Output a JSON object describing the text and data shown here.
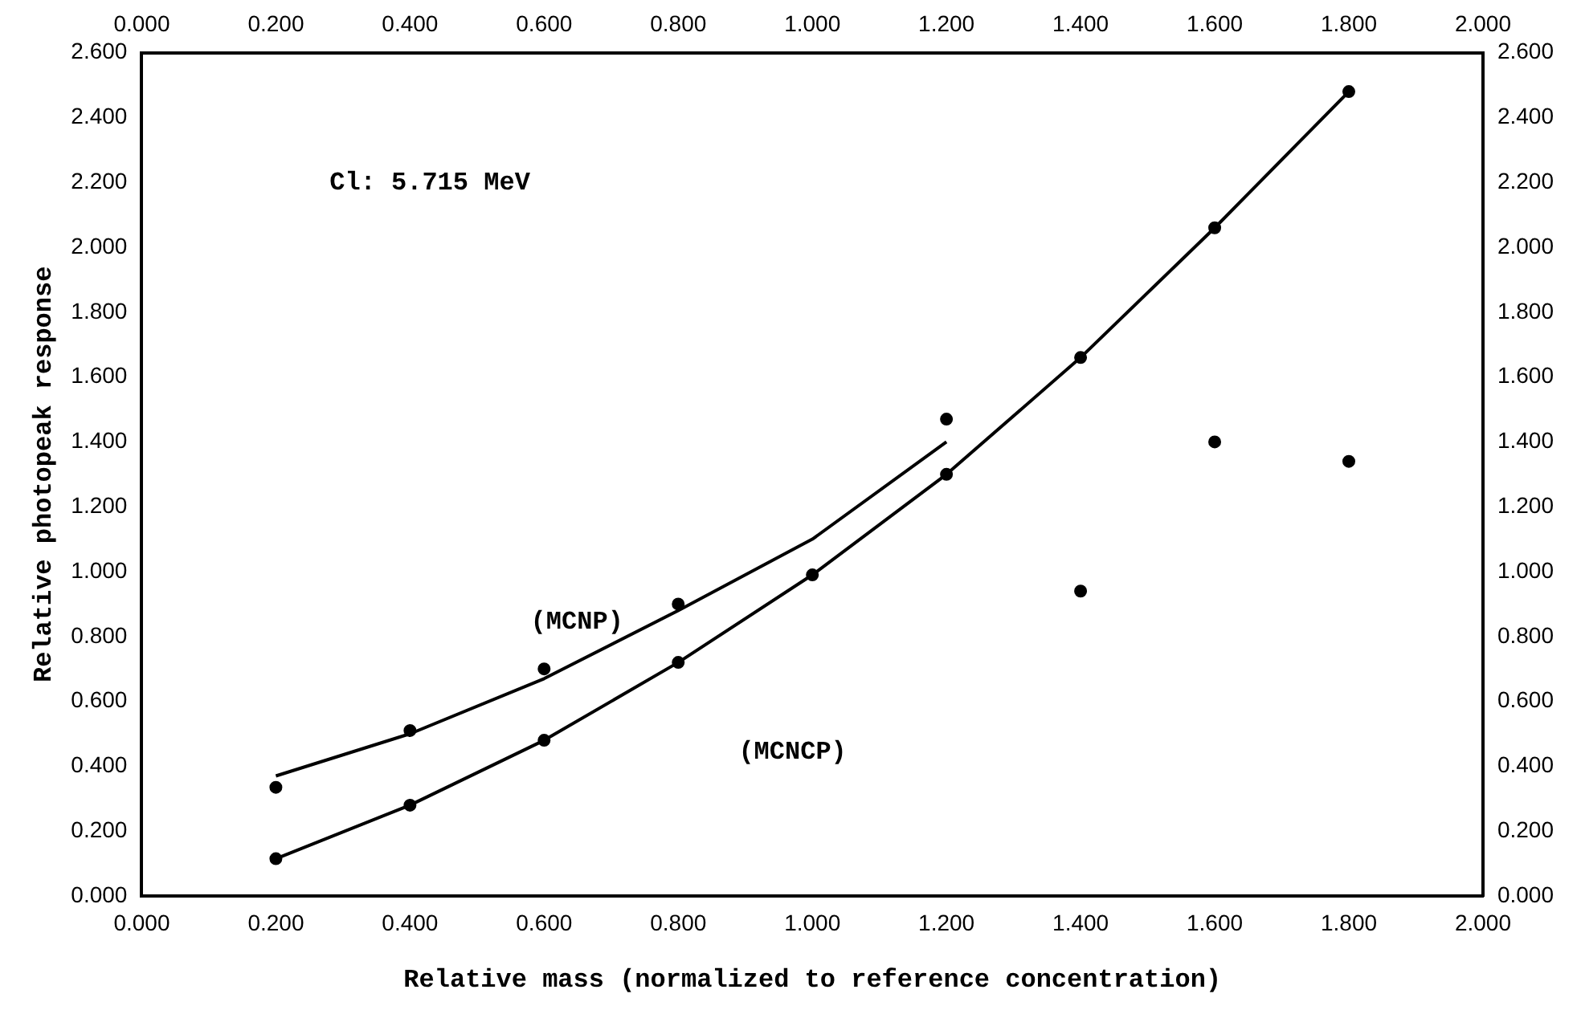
{
  "chart_data": {
    "type": "scatter",
    "xlabel": "Relative mass (normalized to reference concentration)",
    "ylabel": "Relative photopeak response",
    "xlim": [
      0,
      2
    ],
    "x2lim": [
      0,
      2
    ],
    "ylim": [
      0,
      2.6
    ],
    "y2lim": [
      0,
      2.6
    ],
    "xticks": [
      {
        "value": 0,
        "label": "0.000"
      },
      {
        "value": 0.2,
        "label": "0.200"
      },
      {
        "value": 0.4,
        "label": "0.400"
      },
      {
        "value": 0.6,
        "label": "0.600"
      },
      {
        "value": 0.8,
        "label": "0.800"
      },
      {
        "value": 1,
        "label": "1.000"
      },
      {
        "value": 1.2,
        "label": "1.200"
      },
      {
        "value": 1.4,
        "label": "1.400"
      },
      {
        "value": 1.6,
        "label": "1.600"
      },
      {
        "value": 1.8,
        "label": "1.800"
      },
      {
        "value": 2,
        "label": "2.000"
      }
    ],
    "x2ticks": [
      {
        "value": 0,
        "label": "0.000"
      },
      {
        "value": 0.2,
        "label": "0.200"
      },
      {
        "value": 0.4,
        "label": "0.400"
      },
      {
        "value": 0.6,
        "label": "0.600"
      },
      {
        "value": 0.8,
        "label": "0.800"
      },
      {
        "value": 1,
        "label": "1.000"
      },
      {
        "value": 1.2,
        "label": "1.200"
      },
      {
        "value": 1.4,
        "label": "1.400"
      },
      {
        "value": 1.6,
        "label": "1.600"
      },
      {
        "value": 1.8,
        "label": "1.800"
      },
      {
        "value": 2,
        "label": "2.000"
      }
    ],
    "yticks": [
      {
        "value": 0,
        "label": "0.000"
      },
      {
        "value": 0.2,
        "label": "0.200"
      },
      {
        "value": 0.4,
        "label": "0.400"
      },
      {
        "value": 0.6,
        "label": "0.600"
      },
      {
        "value": 0.8,
        "label": "0.800"
      },
      {
        "value": 1,
        "label": "1.000"
      },
      {
        "value": 1.2,
        "label": "1.200"
      },
      {
        "value": 1.4,
        "label": "1.400"
      },
      {
        "value": 1.6,
        "label": "1.600"
      },
      {
        "value": 1.8,
        "label": "1.800"
      },
      {
        "value": 2,
        "label": "2.000"
      },
      {
        "value": 2.2,
        "label": "2.200"
      },
      {
        "value": 2.4,
        "label": "2.400"
      },
      {
        "value": 2.6,
        "label": "2.600"
      }
    ],
    "y2ticks": [
      {
        "value": 0,
        "label": "0.000"
      },
      {
        "value": 0.2,
        "label": "0.200"
      },
      {
        "value": 0.4,
        "label": "0.400"
      },
      {
        "value": 0.6,
        "label": "0.600"
      },
      {
        "value": 0.8,
        "label": "0.800"
      },
      {
        "value": 1,
        "label": "1.000"
      },
      {
        "value": 1.2,
        "label": "1.200"
      },
      {
        "value": 1.4,
        "label": "1.400"
      },
      {
        "value": 1.6,
        "label": "1.600"
      },
      {
        "value": 1.8,
        "label": "1.800"
      },
      {
        "value": 2,
        "label": "2.000"
      },
      {
        "value": 2.2,
        "label": "2.200"
      },
      {
        "value": 2.4,
        "label": "2.400"
      },
      {
        "value": 2.6,
        "label": "2.600"
      }
    ],
    "series": [
      {
        "type": "line",
        "marker": "none",
        "color": "#000000",
        "x": [
          0.2,
          0.4,
          0.6,
          0.8,
          1.0,
          1.2
        ],
        "values": [
          0.37,
          0.5,
          0.67,
          0.88,
          1.1,
          1.4
        ]
      },
      {
        "type": "line",
        "marker": "none",
        "color": "#000000",
        "x": [
          0.2,
          0.4,
          0.6,
          0.8,
          1.0,
          1.2,
          1.4,
          1.6,
          1.8
        ],
        "values": [
          0.115,
          0.28,
          0.48,
          0.72,
          0.99,
          1.3,
          1.66,
          2.06,
          2.48
        ]
      },
      {
        "type": "scatter",
        "marker": "circle",
        "color": "#000000",
        "x": [
          0.2,
          0.4,
          0.6,
          0.8,
          1.2,
          1.4,
          1.6,
          1.8
        ],
        "values": [
          0.335,
          0.51,
          0.7,
          0.9,
          1.47,
          0.94,
          1.4,
          1.34
        ]
      },
      {
        "type": "scatter",
        "marker": "circle",
        "color": "#000000",
        "x": [
          0.2,
          0.4,
          0.6,
          0.8,
          1.0,
          1.2,
          1.4,
          1.6,
          1.8
        ],
        "values": [
          0.115,
          0.28,
          0.48,
          0.72,
          0.99,
          1.3,
          1.66,
          2.06,
          2.48
        ]
      }
    ],
    "annotations": [
      "Cl: 5.715 MeV",
      "(MCNP)",
      "(MCNCP)"
    ],
    "grid": false,
    "legend": false
  }
}
